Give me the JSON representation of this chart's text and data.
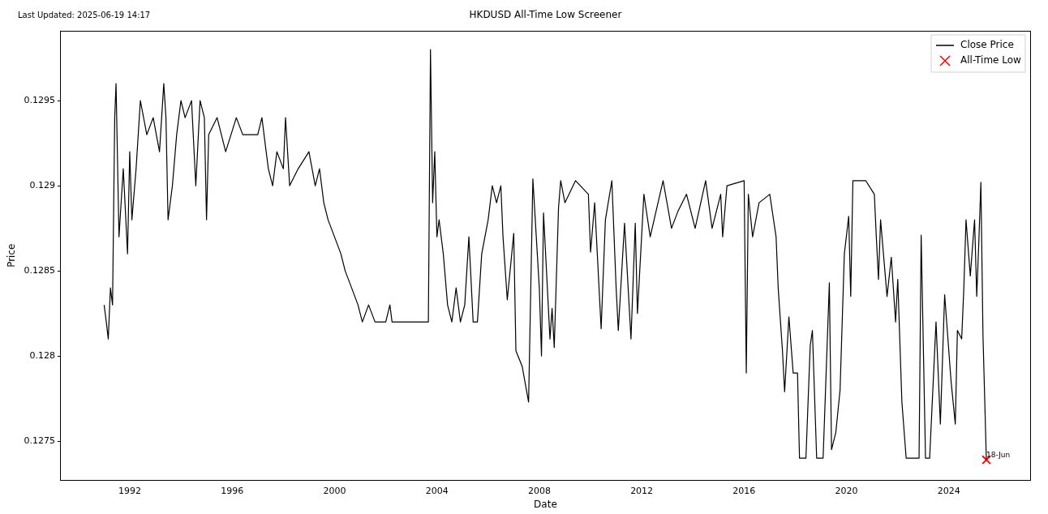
{
  "chart_data": {
    "type": "line",
    "title": "HKDUSD All-Time Low Screener",
    "xlabel": "Date",
    "ylabel": "Price",
    "xlim": [
      "1989-04-22",
      "2027-03-05"
    ],
    "xticks": [
      "1992",
      "1996",
      "2000",
      "2004",
      "2008",
      "2012",
      "2016",
      "2020",
      "2024"
    ],
    "ylim": [
      0.12727,
      0.12991
    ],
    "yticks": [
      0.1275,
      0.128,
      0.1285,
      0.129,
      0.1295
    ],
    "grid": false,
    "legend": "top right",
    "marker": "none",
    "line_style": "solid",
    "annotations": [
      "Last Updated: 2025-06-19 14:17",
      {
        "text": "18-Jun",
        "x": "2025-06-18",
        "y": 0.12739
      }
    ],
    "series": [
      {
        "name": "Close Price",
        "color": "#000000",
        "x": [
          "1991-01",
          "1991-02",
          "1991-03",
          "1991-04",
          "1991-05",
          "1991-06-01",
          "1991-06-20",
          "1991-08",
          "1991-10",
          "1991-12",
          "1992-01",
          "1992-02",
          "1992-04",
          "1992-06",
          "1992-09",
          "1992-12",
          "1993-03",
          "1993-05",
          "1993-06",
          "1993-07",
          "1993-09",
          "1993-11",
          "1994-01",
          "1994-03",
          "1994-06",
          "1994-08",
          "1994-10",
          "1994-12",
          "1995-01",
          "1995-02",
          "1995-06",
          "1995-10",
          "1996-03",
          "1996-06",
          "1997-01",
          "1997-03",
          "1997-05",
          "1997-06",
          "1997-08",
          "1997-10",
          "1998-01",
          "1998-02",
          "1998-04",
          "1998-08",
          "1999-01",
          "1999-04",
          "1999-06",
          "1999-08",
          "1999-10",
          "2000-01",
          "2000-04",
          "2000-06",
          "2000-09",
          "2000-12",
          "2001-02",
          "2001-05",
          "2001-08",
          "2002-01",
          "2002-03",
          "2002-04",
          "2003-09",
          "2003-10",
          "2003-11",
          "2003-12",
          "2004-01",
          "2004-02",
          "2004-04",
          "2004-06",
          "2004-08",
          "2004-10",
          "2004-12",
          "2005-02",
          "2005-04",
          "2005-06",
          "2005-08",
          "2005-10",
          "2006-01",
          "2006-03",
          "2006-05",
          "2006-07",
          "2006-08",
          "2006-10",
          "2007-01",
          "2007-02",
          "2007-05",
          "2007-08",
          "2007-10",
          "2008-01",
          "2008-02",
          "2008-03",
          "2008-06",
          "2008-07",
          "2008-08",
          "2008-10",
          "2008-11",
          "2009-01",
          "2009-06",
          "2009-12",
          "2010-01",
          "2010-03",
          "2010-06",
          "2010-08",
          "2010-11",
          "2011-01",
          "2011-02",
          "2011-05",
          "2011-08",
          "2011-10",
          "2011-11",
          "2012-02",
          "2012-05",
          "2012-11",
          "2013-03",
          "2013-06",
          "2013-10",
          "2014-02",
          "2014-07",
          "2014-10",
          "2015-02",
          "2015-03",
          "2015-05",
          "2016-01",
          "2016-02",
          "2016-03",
          "2016-05",
          "2016-08",
          "2017-01",
          "2017-04",
          "2017-05",
          "2017-07",
          "2017-08",
          "2017-10",
          "2017-12",
          "2018-02",
          "2018-03",
          "2018-06",
          "2018-08",
          "2018-09",
          "2018-11",
          "2019-02",
          "2019-05",
          "2019-06",
          "2019-08",
          "2019-10",
          "2019-12",
          "2020-02",
          "2020-03",
          "2020-04",
          "2020-10",
          "2021-02",
          "2021-03",
          "2021-04",
          "2021-05",
          "2021-08",
          "2021-10",
          "2021-12",
          "2022-01",
          "2022-03",
          "2022-05",
          "2022-11",
          "2022-12",
          "2023-02",
          "2023-04",
          "2023-07",
          "2023-09",
          "2023-11",
          "2024-02",
          "2024-04",
          "2024-05",
          "2024-07",
          "2024-08",
          "2024-09",
          "2024-11",
          "2025-01",
          "2025-02",
          "2025-03",
          "2025-04",
          "2025-05",
          "2025-06-18"
        ],
        "values": [
          0.1283,
          0.1282,
          0.1281,
          0.1284,
          0.1283,
          0.1294,
          0.1296,
          0.1287,
          0.1291,
          0.1286,
          0.1292,
          0.1288,
          0.1291,
          0.1295,
          0.1293,
          0.1294,
          0.1292,
          0.1296,
          0.1294,
          0.1288,
          0.129,
          0.1293,
          0.1295,
          0.1294,
          0.1295,
          0.129,
          0.1295,
          0.1294,
          0.1288,
          0.1293,
          0.1294,
          0.1292,
          0.1294,
          0.1293,
          0.1293,
          0.1294,
          0.1292,
          0.1291,
          0.129,
          0.1292,
          0.1291,
          0.1294,
          0.129,
          0.1291,
          0.1292,
          0.129,
          0.1291,
          0.1289,
          0.1288,
          0.1287,
          0.1286,
          0.1285,
          0.1284,
          0.1283,
          0.1282,
          0.1283,
          0.1282,
          0.1282,
          0.1283,
          0.1282,
          0.1282,
          0.1298,
          0.1289,
          0.1292,
          0.1287,
          0.1288,
          0.1286,
          0.1283,
          0.1282,
          0.1284,
          0.1282,
          0.1283,
          0.1287,
          0.1282,
          0.1282,
          0.1286,
          0.1288,
          0.129,
          0.1289,
          0.129,
          0.1287,
          0.12833,
          0.12872,
          0.12803,
          0.12794,
          0.12773,
          0.12904,
          0.1284,
          0.128,
          0.12884,
          0.1281,
          0.12828,
          0.12805,
          0.12887,
          0.12903,
          0.1289,
          0.12903,
          0.12895,
          0.12861,
          0.1289,
          0.12816,
          0.1288,
          0.12903,
          0.1284,
          0.12815,
          0.12878,
          0.1281,
          0.12878,
          0.12825,
          0.12895,
          0.1287,
          0.12903,
          0.12875,
          0.12885,
          0.12895,
          0.12875,
          0.12903,
          0.12875,
          0.12895,
          0.1287,
          0.129,
          0.12903,
          0.1279,
          0.12895,
          0.1287,
          0.1289,
          0.12895,
          0.1287,
          0.1284,
          0.12803,
          0.12779,
          0.12823,
          0.1279,
          0.1279,
          0.1274,
          0.1274,
          0.12806,
          0.12815,
          0.1274,
          0.1274,
          0.12843,
          0.12745,
          0.12755,
          0.1278,
          0.1286,
          0.12882,
          0.12835,
          0.12903,
          0.12903,
          0.12895,
          0.1287,
          0.12845,
          0.1288,
          0.12835,
          0.12858,
          0.1282,
          0.12845,
          0.12773,
          0.1274,
          0.1274,
          0.12871,
          0.1274,
          0.1274,
          0.1282,
          0.1276,
          0.12836,
          0.12785,
          0.1276,
          0.12815,
          0.1281,
          0.1284,
          0.1288,
          0.12847,
          0.1288,
          0.12835,
          0.12865,
          0.12902,
          0.12812,
          0.12739
        ]
      },
      {
        "name": "All-Time Low",
        "type": "scatter",
        "color": "#ff0000",
        "marker": "cross",
        "x": [
          "2025-06-18"
        ],
        "values": [
          0.12739
        ]
      }
    ]
  }
}
